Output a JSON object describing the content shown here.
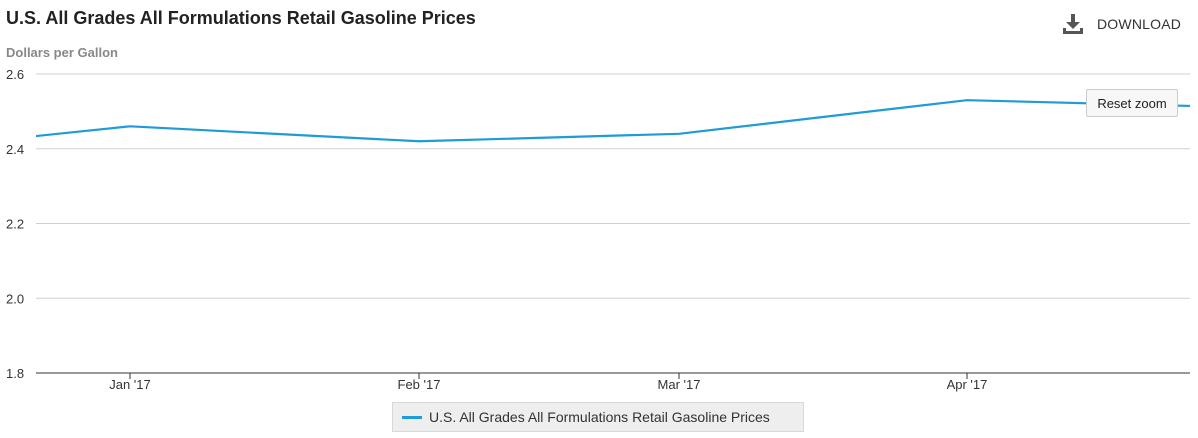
{
  "header": {
    "title": "U.S. All Grades All Formulations Retail Gasoline Prices",
    "download_label": "DOWNLOAD",
    "download_icon": "download-icon"
  },
  "reset_zoom_label": "Reset zoom",
  "colors": {
    "series": "#1f9bd7",
    "grid": "#d0d0d0",
    "axis": "#333333"
  },
  "chart_data": {
    "type": "line",
    "title": "U.S. All Grades All Formulations Retail Gasoline Prices",
    "ylabel": "Dollars per Gallon",
    "xlabel": "",
    "ylim": [
      1.8,
      2.6
    ],
    "yticks": [
      "1.8",
      "2.0",
      "2.2",
      "2.4",
      "2.6"
    ],
    "x_ticks": [
      "Jan '17",
      "Feb '17",
      "Mar '17",
      "Apr '17"
    ],
    "grid": true,
    "legend_position": "bottom-center",
    "series": [
      {
        "name": "U.S. All Grades All Formulations Retail Gasoline Prices",
        "x": [
          "2016-12",
          "2017-01",
          "2017-02",
          "2017-03",
          "2017-04",
          "2017-05"
        ],
        "values": [
          2.38,
          2.46,
          2.42,
          2.44,
          2.53,
          2.51
        ]
      }
    ]
  }
}
